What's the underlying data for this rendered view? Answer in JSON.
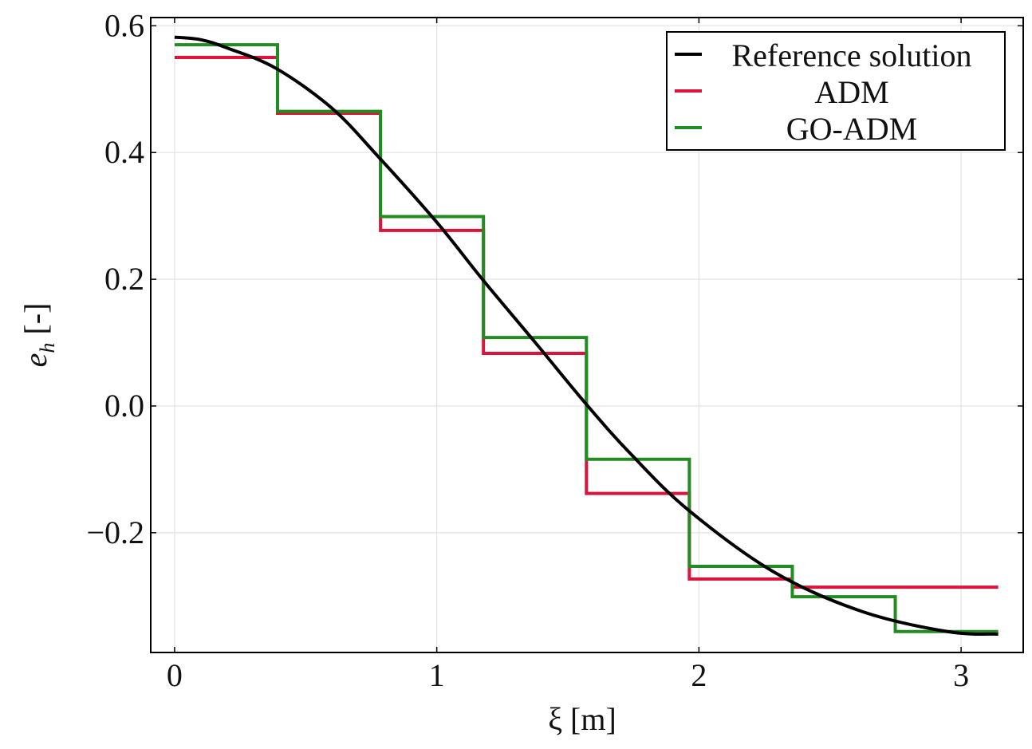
{
  "chart_data": {
    "type": "line",
    "title": "",
    "xlabel": "ξ [m]",
    "ylabel_main": "e",
    "ylabel_sub": "h",
    "ylabel_unit": "[-]",
    "xlim": [
      -0.091,
      3.237
    ],
    "ylim": [
      -0.389,
      0.613
    ],
    "xticks": [
      0,
      1,
      2,
      3
    ],
    "xtick_labels": [
      "0",
      "1",
      "2",
      "3"
    ],
    "yticks": [
      0.6,
      0.4,
      0.2,
      0.0,
      -0.2
    ],
    "ytick_labels": [
      "0.6",
      "0.4",
      "0.2",
      "0.0",
      "−0.2"
    ],
    "grid": true,
    "legend_position": "top-right",
    "series": [
      {
        "name": "Reference solution",
        "color": "#000000",
        "kind": "line",
        "x": [
          0,
          0.1,
          0.2,
          0.386,
          0.6,
          0.778,
          1.0,
          1.174,
          1.376,
          1.576,
          1.743,
          1.962,
          2.29,
          2.62,
          2.948,
          3.1416
        ],
        "y": [
          0.582,
          0.578,
          0.565,
          0.533,
          0.47,
          0.393,
          0.29,
          0.2,
          0.1,
          0.0,
          -0.077,
          -0.165,
          -0.263,
          -0.324,
          -0.356,
          -0.36
        ]
      },
      {
        "name": "ADM",
        "color": "#dc143c",
        "kind": "step",
        "edges": [
          0,
          0.3927,
          0.7854,
          1.1781,
          1.5708,
          1.9635,
          2.3562,
          2.7489,
          3.1416
        ],
        "values": [
          0.55,
          0.462,
          0.277,
          0.083,
          -0.138,
          -0.273,
          -0.286,
          -0.286
        ]
      },
      {
        "name": "GO-ADM",
        "color": "#228b22",
        "kind": "step",
        "edges": [
          0,
          0.3927,
          0.7854,
          1.1781,
          1.5708,
          1.9635,
          2.3562,
          2.7489,
          3.1416
        ],
        "values": [
          0.57,
          0.465,
          0.299,
          0.108,
          -0.084,
          -0.253,
          -0.301,
          -0.356
        ]
      }
    ]
  }
}
